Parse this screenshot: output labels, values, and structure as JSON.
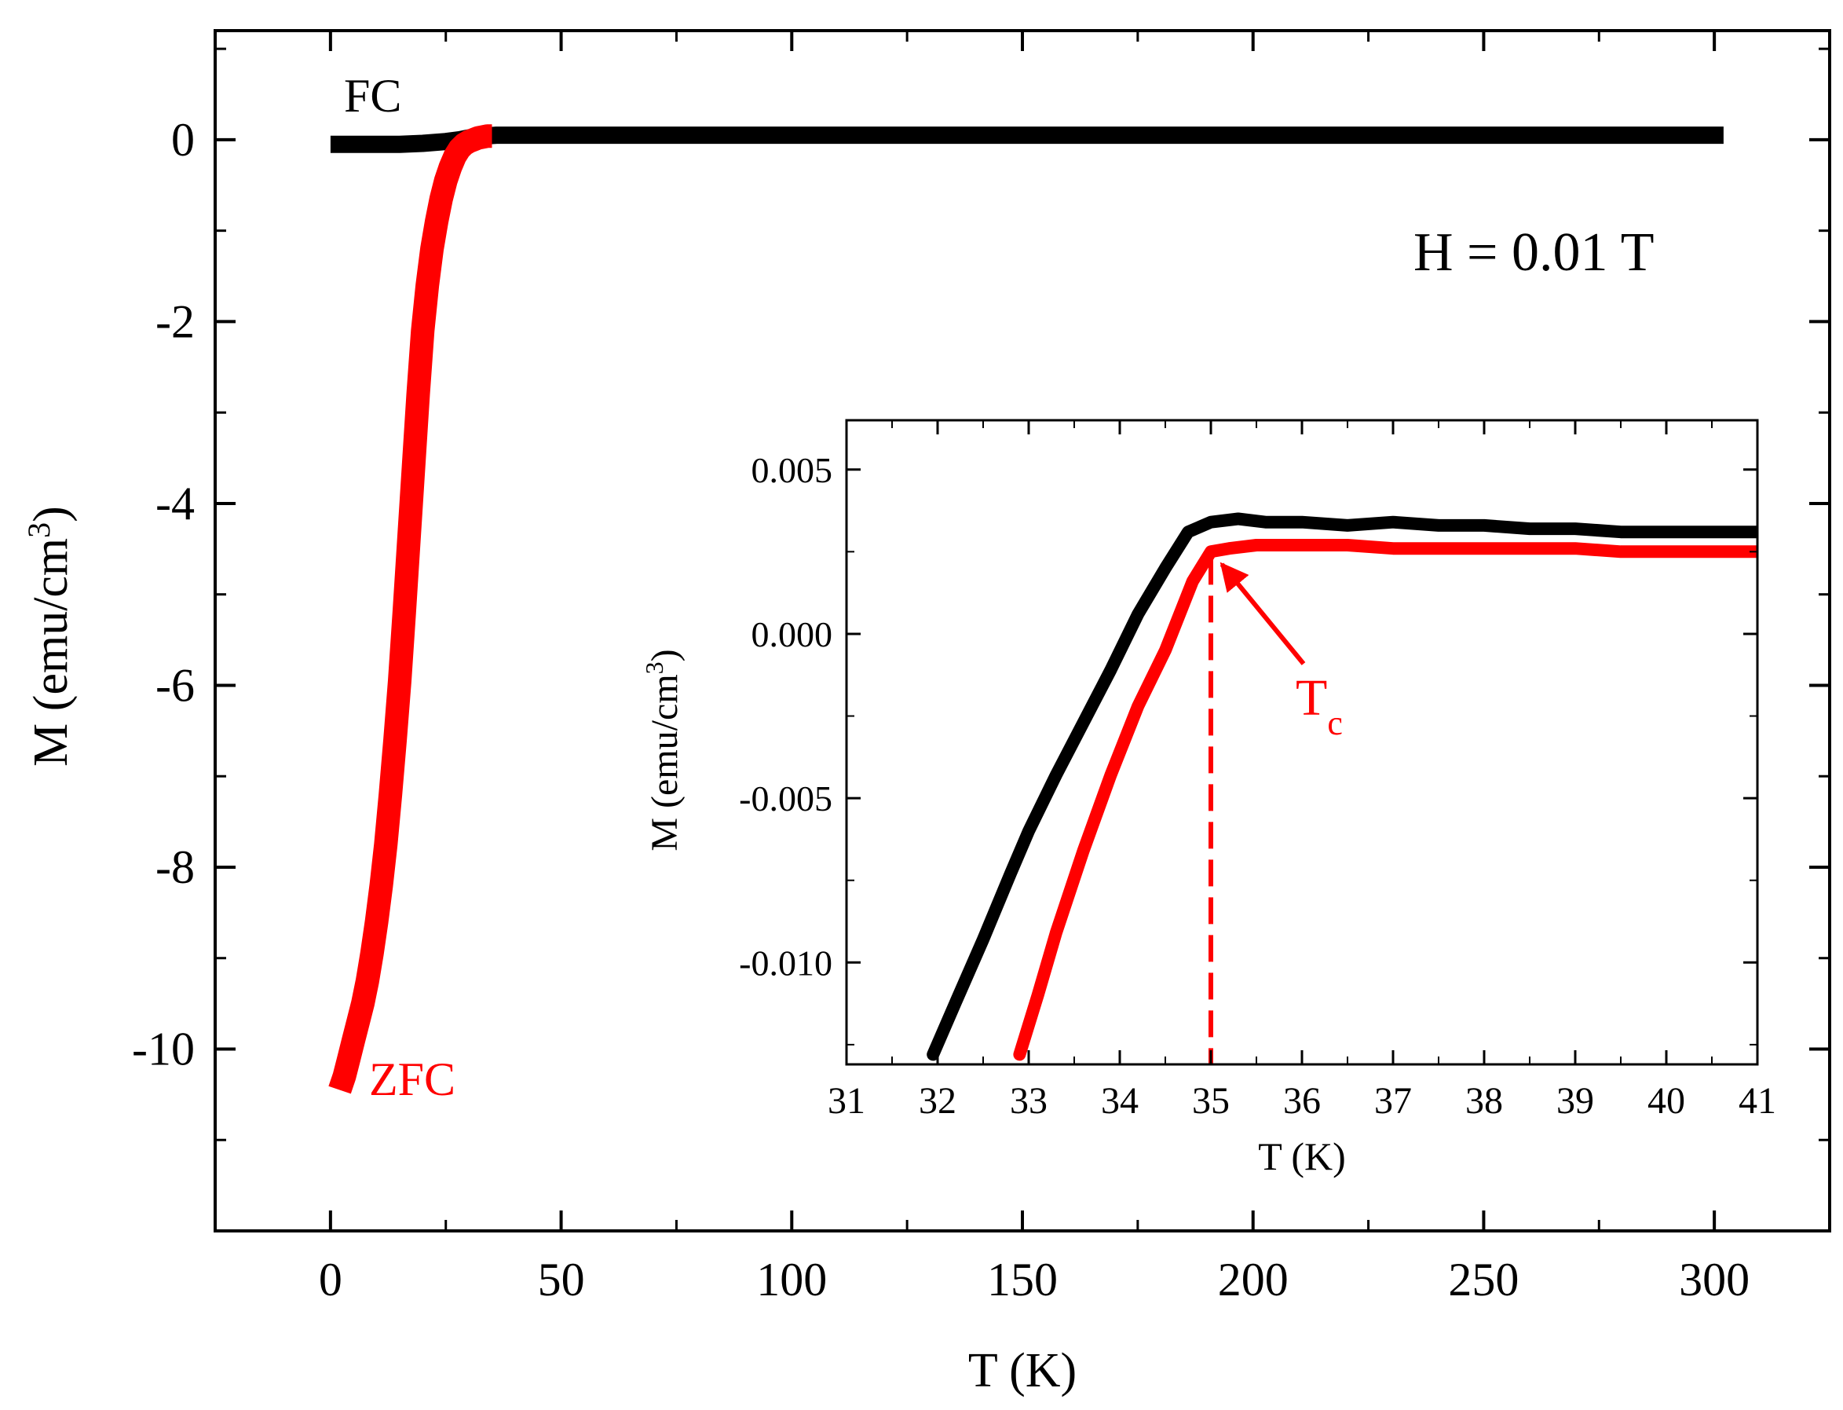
{
  "chart_data": [
    {
      "id": "main",
      "type": "line",
      "title": "",
      "xlabel": "T (K)",
      "ylabel_main": "M (emu/cm",
      "ylabel_sup": "3",
      "ylabel_close": ")",
      "xlim": [
        -25,
        325
      ],
      "ylim": [
        -12,
        1.2
      ],
      "xticks": [
        0,
        50,
        100,
        150,
        200,
        250,
        300
      ],
      "xtick_labels": [
        "0",
        "50",
        "100",
        "150",
        "200",
        "250",
        "300"
      ],
      "yticks": [
        0,
        -2,
        -4,
        -6,
        -8,
        -10
      ],
      "ytick_labels": [
        "0",
        "-2",
        "-4",
        "-6",
        "-8",
        "-10"
      ],
      "annotations": {
        "field": "H = 0.01 T",
        "fc_label": "FC",
        "zfc_label": "ZFC"
      },
      "series": [
        {
          "name": "FC",
          "color": "#000000",
          "x": [
            0,
            5,
            10,
            15,
            20,
            25,
            28,
            30,
            33,
            36,
            50,
            100,
            150,
            200,
            250,
            300,
            302
          ],
          "y": [
            -0.05,
            -0.05,
            -0.05,
            -0.05,
            -0.04,
            -0.02,
            0.0,
            0.02,
            0.04,
            0.05,
            0.05,
            0.05,
            0.05,
            0.05,
            0.05,
            0.05,
            0.05
          ]
        },
        {
          "name": "ZFC",
          "color": "#ff0000",
          "x": [
            2,
            3,
            4,
            5,
            6,
            7,
            8,
            9,
            10,
            11,
            12,
            13,
            14,
            15,
            16,
            17,
            18,
            19,
            20,
            21,
            22,
            23,
            24,
            25,
            26,
            27,
            28,
            29,
            30,
            31,
            32,
            33,
            34,
            35
          ],
          "y": [
            -10.45,
            -10.3,
            -10.1,
            -9.9,
            -9.7,
            -9.5,
            -9.25,
            -8.95,
            -8.6,
            -8.2,
            -7.75,
            -7.2,
            -6.6,
            -5.95,
            -5.2,
            -4.4,
            -3.6,
            -2.8,
            -2.1,
            -1.6,
            -1.2,
            -0.9,
            -0.65,
            -0.45,
            -0.3,
            -0.18,
            -0.1,
            -0.05,
            -0.02,
            0.0,
            0.02,
            0.03,
            0.04,
            0.04
          ]
        }
      ]
    },
    {
      "id": "inset",
      "type": "line",
      "title": "",
      "xlabel": "T (K)",
      "ylabel_main": "M (emu/cm",
      "ylabel_sup": "3",
      "ylabel_close": ")",
      "xlim": [
        31,
        41
      ],
      "ylim": [
        -0.0131,
        0.0065
      ],
      "xticks": [
        31,
        32,
        33,
        34,
        35,
        36,
        37,
        38,
        39,
        40,
        41
      ],
      "xtick_labels": [
        "31",
        "32",
        "33",
        "34",
        "35",
        "36",
        "37",
        "38",
        "39",
        "40",
        "41"
      ],
      "yticks": [
        0.005,
        0.0,
        -0.005,
        -0.01
      ],
      "ytick_labels": [
        "0.005",
        "0.000",
        "-0.005",
        "-0.010"
      ],
      "annotations": {
        "tc_main": "T",
        "tc_sub": "c",
        "tc_value": 35,
        "tc_m": 0.0025
      },
      "series": [
        {
          "name": "FC",
          "color": "#000000",
          "x": [
            31.95,
            32.2,
            32.5,
            32.8,
            33.0,
            33.3,
            33.6,
            33.9,
            34.2,
            34.5,
            34.75,
            35.0,
            35.3,
            35.6,
            36.0,
            36.5,
            37.0,
            37.5,
            38.0,
            38.5,
            39.0,
            39.5,
            40.0,
            40.5,
            41.0
          ],
          "y": [
            -0.0128,
            -0.0112,
            -0.0093,
            -0.0073,
            -0.006,
            -0.0043,
            -0.0027,
            -0.0011,
            0.0006,
            0.002,
            0.0031,
            0.0034,
            0.0035,
            0.0034,
            0.0034,
            0.0033,
            0.0034,
            0.0033,
            0.0033,
            0.0032,
            0.0032,
            0.0031,
            0.0031,
            0.0031,
            0.0031
          ]
        },
        {
          "name": "ZFC",
          "color": "#ff0000",
          "x": [
            32.9,
            33.1,
            33.3,
            33.6,
            33.9,
            34.2,
            34.5,
            34.8,
            35.0,
            35.2,
            35.5,
            36.0,
            36.5,
            37.0,
            37.5,
            38.0,
            38.5,
            39.0,
            39.5,
            40.0,
            40.5,
            41.0
          ],
          "y": [
            -0.0128,
            -0.011,
            -0.0091,
            -0.0066,
            -0.0043,
            -0.0022,
            -0.0005,
            0.0016,
            0.0025,
            0.0026,
            0.0027,
            0.0027,
            0.0027,
            0.0026,
            0.0026,
            0.0026,
            0.0026,
            0.0026,
            0.0025,
            0.0025,
            0.0025,
            0.0025
          ]
        }
      ]
    }
  ]
}
